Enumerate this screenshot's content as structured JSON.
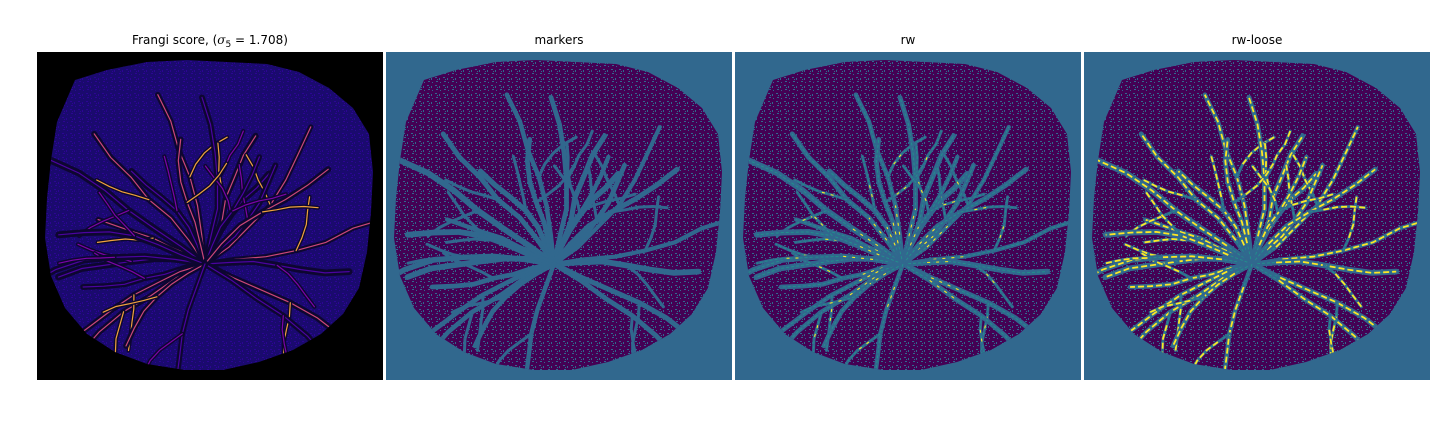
{
  "panels": [
    {
      "title": "Frangi score, (",
      "title_sigma": "σ",
      "title_sub": "5",
      "title_tail": " = 1.708)",
      "colormap": "plasma",
      "background": "#000000",
      "blob": "#1a0a6e",
      "vessel_colors": [
        "#4b03a1",
        "#7d03a8",
        "#cb4778",
        "#f0a23b"
      ]
    },
    {
      "title": "markers",
      "colormap": "viridis",
      "background": "#31688e",
      "blob": "#440154",
      "vessel_colors": [
        "#31688e",
        "#21918c"
      ]
    },
    {
      "title": "rw",
      "colormap": "viridis",
      "background": "#31688e",
      "blob": "#440154",
      "vessel_colors": [
        "#21918c",
        "#35b779",
        "#fde725"
      ]
    },
    {
      "title": "rw-loose",
      "colormap": "viridis",
      "background": "#31688e",
      "blob": "#440154",
      "vessel_colors": [
        "#21918c",
        "#35b779",
        "#fde725"
      ]
    }
  ]
}
